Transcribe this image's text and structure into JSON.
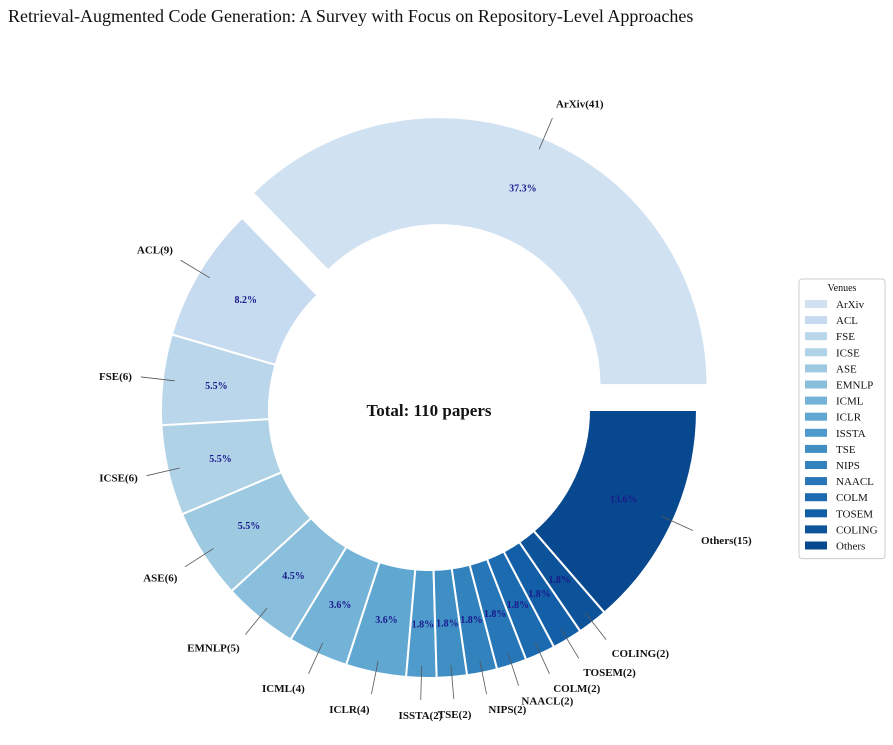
{
  "title": "Retrieval-Augmented Code Generation: A Survey with Focus on Repository-Level Approaches",
  "chart_data": {
    "type": "pie",
    "donut": true,
    "center_text": "Total: 110 papers",
    "legend": {
      "title": "Venues",
      "placement": "right"
    },
    "slices": [
      {
        "name": "ArXiv",
        "label": "ArXiv(41)",
        "count": 41,
        "pct": "37.3%",
        "color": "#d0e1f2",
        "exploded": true
      },
      {
        "name": "ACL",
        "label": "ACL(9)",
        "count": 9,
        "pct": "8.2%",
        "color": "#c6dbef"
      },
      {
        "name": "FSE",
        "label": "FSE(6)",
        "count": 6,
        "pct": "5.5%",
        "color": "#bad6eb"
      },
      {
        "name": "ICSE",
        "label": "ICSE(6)",
        "count": 6,
        "pct": "5.5%",
        "color": "#b0d2e7"
      },
      {
        "name": "ASE",
        "label": "ASE(6)",
        "count": 6,
        "pct": "5.5%",
        "color": "#9ecae1"
      },
      {
        "name": "EMNLP",
        "label": "EMNLP(5)",
        "count": 5,
        "pct": "4.5%",
        "color": "#89bedc"
      },
      {
        "name": "ICML",
        "label": "ICML(4)",
        "count": 4,
        "pct": "3.6%",
        "color": "#74b3d8"
      },
      {
        "name": "ICLR",
        "label": "ICLR(4)",
        "count": 4,
        "pct": "3.6%",
        "color": "#60a7d2"
      },
      {
        "name": "ISSTA",
        "label": "ISSTA(2)",
        "count": 2,
        "pct": "1.8%",
        "color": "#4f9bcb"
      },
      {
        "name": "TSE",
        "label": "TSE(2)",
        "count": 2,
        "pct": "1.8%",
        "color": "#3f8fc5"
      },
      {
        "name": "NIPS",
        "label": "NIPS(2)",
        "count": 2,
        "pct": "1.8%",
        "color": "#3282be"
      },
      {
        "name": "NAACL",
        "label": "NAACL(2)",
        "count": 2,
        "pct": "1.8%",
        "color": "#2676b8"
      },
      {
        "name": "COLM",
        "label": "COLM(2)",
        "count": 2,
        "pct": "1.8%",
        "color": "#1c6aaf"
      },
      {
        "name": "TOSEM",
        "label": "TOSEM(2)",
        "count": 2,
        "pct": "1.8%",
        "color": "#135fa7"
      },
      {
        "name": "COLING",
        "label": "COLING(2)",
        "count": 2,
        "pct": "1.8%",
        "color": "#0d539a"
      },
      {
        "name": "Others",
        "label": "Others(15)",
        "count": 15,
        "pct": "13.6%",
        "color": "#08488e"
      }
    ]
  }
}
